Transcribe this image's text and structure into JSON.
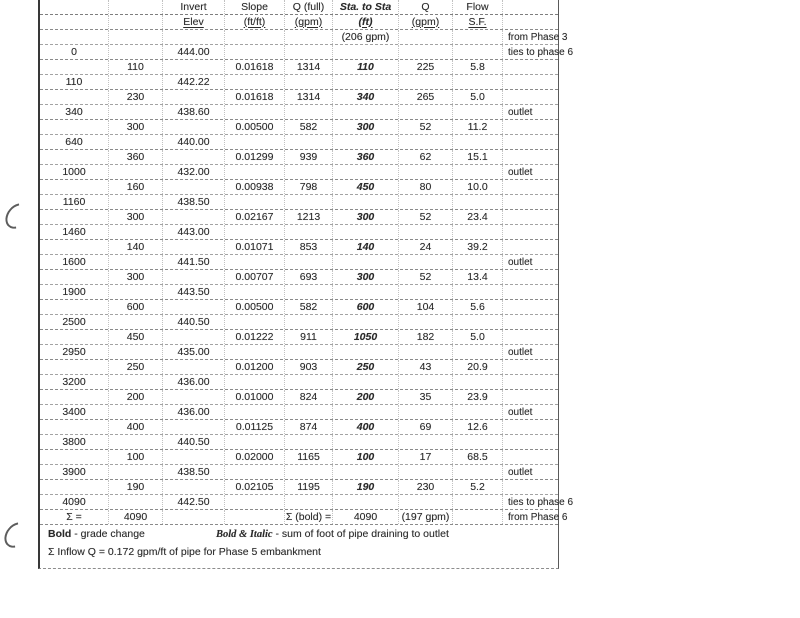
{
  "table": {
    "header1": [
      "",
      "",
      "Invert",
      "Slope",
      "Q (full)",
      "Sta. to Sta",
      "Q",
      "Flow",
      ""
    ],
    "header2": [
      "",
      "",
      "Elev",
      "(ft/ft)",
      "(gpm)",
      "(ft)",
      "(gpm)",
      "S.F.",
      ""
    ],
    "columns_meaning": [
      "station",
      "length_ft",
      "invert_elev",
      "slope_ftft",
      "q_full_gpm",
      "sta_to_sta_ft",
      "q_gpm",
      "flow_safety_factor",
      "notes"
    ],
    "rows": [
      [
        "",
        "",
        "",
        "",
        "",
        "(206 gpm)",
        "",
        "",
        "from Phase 3"
      ],
      [
        "0",
        "",
        "444.00",
        "",
        "",
        "",
        "",
        "",
        "ties to phase 6"
      ],
      [
        "",
        "110",
        "",
        "0.01618",
        "1314",
        "110",
        "225",
        "5.8",
        ""
      ],
      [
        "110",
        "",
        "442.22",
        "",
        "",
        "",
        "",
        "",
        ""
      ],
      [
        "",
        "230",
        "",
        "0.01618",
        "1314",
        "340",
        "265",
        "5.0",
        ""
      ],
      [
        "340",
        "",
        "438.60",
        "",
        "",
        "",
        "",
        "",
        "outlet"
      ],
      [
        "",
        "300",
        "",
        "0.00500",
        "582",
        "300",
        "52",
        "11.2",
        ""
      ],
      [
        "640",
        "",
        "440.00",
        "",
        "",
        "",
        "",
        "",
        ""
      ],
      [
        "",
        "360",
        "",
        "0.01299",
        "939",
        "360",
        "62",
        "15.1",
        ""
      ],
      [
        "1000",
        "",
        "432.00",
        "",
        "",
        "",
        "",
        "",
        "outlet"
      ],
      [
        "",
        "160",
        "",
        "0.00938",
        "798",
        "450",
        "80",
        "10.0",
        ""
      ],
      [
        "1160",
        "",
        "438.50",
        "",
        "",
        "",
        "",
        "",
        ""
      ],
      [
        "",
        "300",
        "",
        "0.02167",
        "1213",
        "300",
        "52",
        "23.4",
        ""
      ],
      [
        "1460",
        "",
        "443.00",
        "",
        "",
        "",
        "",
        "",
        ""
      ],
      [
        "",
        "140",
        "",
        "0.01071",
        "853",
        "140",
        "24",
        "39.2",
        ""
      ],
      [
        "1600",
        "",
        "441.50",
        "",
        "",
        "",
        "",
        "",
        "outlet"
      ],
      [
        "",
        "300",
        "",
        "0.00707",
        "693",
        "300",
        "52",
        "13.4",
        ""
      ],
      [
        "1900",
        "",
        "443.50",
        "",
        "",
        "",
        "",
        "",
        ""
      ],
      [
        "",
        "600",
        "",
        "0.00500",
        "582",
        "600",
        "104",
        "5.6",
        ""
      ],
      [
        "2500",
        "",
        "440.50",
        "",
        "",
        "",
        "",
        "",
        ""
      ],
      [
        "",
        "450",
        "",
        "0.01222",
        "911",
        "1050",
        "182",
        "5.0",
        ""
      ],
      [
        "2950",
        "",
        "435.00",
        "",
        "",
        "",
        "",
        "",
        "outlet"
      ],
      [
        "",
        "250",
        "",
        "0.01200",
        "903",
        "250",
        "43",
        "20.9",
        ""
      ],
      [
        "3200",
        "",
        "436.00",
        "",
        "",
        "",
        "",
        "",
        ""
      ],
      [
        "",
        "200",
        "",
        "0.01000",
        "824",
        "200",
        "35",
        "23.9",
        ""
      ],
      [
        "3400",
        "",
        "436.00",
        "",
        "",
        "",
        "",
        "",
        "outlet"
      ],
      [
        "",
        "400",
        "",
        "0.01125",
        "874",
        "400",
        "69",
        "12.6",
        ""
      ],
      [
        "3800",
        "",
        "440.50",
        "",
        "",
        "",
        "",
        "",
        ""
      ],
      [
        "",
        "100",
        "",
        "0.02000",
        "1165",
        "100",
        "17",
        "68.5",
        ""
      ],
      [
        "3900",
        "",
        "438.50",
        "",
        "",
        "",
        "",
        "",
        "outlet"
      ],
      [
        "",
        "190",
        "",
        "0.02105",
        "1195",
        "190",
        "230",
        "5.2",
        ""
      ],
      [
        "4090",
        "",
        "442.50",
        "",
        "",
        "",
        "",
        "",
        "ties to phase 6"
      ],
      [
        "Σ =",
        "4090",
        "",
        "",
        "Σ (bold) =",
        "4090",
        "(197 gpm)",
        "",
        "from Phase 6"
      ]
    ],
    "plain_f_rows": [
      0,
      32
    ]
  },
  "footnotes": {
    "key1": "Bold",
    "rest1": " - grade change",
    "key2": "Bold & Italic",
    "rest2": " - sum of foot of pipe draining to outlet",
    "line2": "Σ Inflow Q = 0.172 gpm/ft of pipe for Phase 5 embankment"
  }
}
